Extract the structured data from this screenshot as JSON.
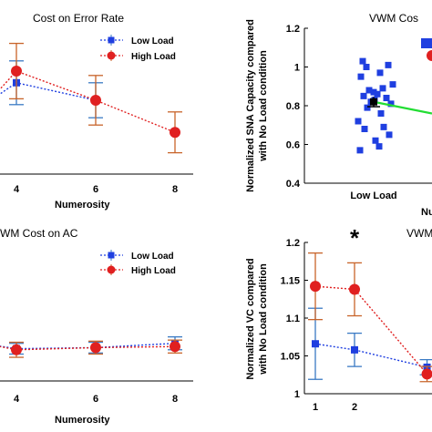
{
  "colors": {
    "low": "#1f3fe0",
    "high": "#e02020",
    "err_low": "#3a7ac4",
    "err_high": "#c8642a",
    "line": "#22dd33"
  },
  "chart_data": [
    {
      "id": "p1",
      "type": "line",
      "title": "Cost on Error Rate",
      "xlabel": "Numerosity",
      "ylabel": "",
      "xlim": [
        3.3,
        8.9
      ],
      "ylim": [
        0,
        1
      ],
      "x_ticks": [
        "4",
        "6",
        "8"
      ],
      "legend": {
        "position": "top-right",
        "entries": [
          "Low Load",
          "High Load"
        ]
      },
      "series": [
        {
          "name": "Low Load",
          "x": [
            3.3,
            4,
            6
          ],
          "y": [
            0.49,
            0.62,
            0.5
          ],
          "err": [
            0,
            0.15,
            0.12
          ]
        },
        {
          "name": "High Load",
          "x": [
            3.3,
            4,
            6,
            8
          ],
          "y": [
            0.49,
            0.7,
            0.5,
            0.28
          ],
          "err": [
            0,
            0.19,
            0.17,
            0.14
          ]
        }
      ]
    },
    {
      "id": "p2",
      "type": "scatter",
      "title": "VWM Cos",
      "xlabel": "Low Load",
      "xlabel2": "Nu",
      "ylabel": "Normalized SNA Capacity compared with No Load condition",
      "ylim": [
        0.4,
        1.2
      ],
      "y_ticks": [
        "0.4",
        "0.6",
        "0.8",
        "1",
        "1.2"
      ],
      "points": [
        1.03,
        1.01,
        1.0,
        0.97,
        0.95,
        0.91,
        0.89,
        0.88,
        0.87,
        0.86,
        0.85,
        0.84,
        0.83,
        0.82,
        0.81,
        0.79,
        0.76,
        0.72,
        0.69,
        0.68,
        0.65,
        0.62,
        0.59,
        0.57
      ],
      "mean": 0.82,
      "err": 0.025,
      "trend": [
        0.85,
        0.76
      ]
    },
    {
      "id": "p3",
      "type": "line",
      "title": "WM Cost on AC",
      "xlabel": "Numerosity",
      "ylabel": "",
      "xlim": [
        3.3,
        8.9
      ],
      "ylim": [
        0,
        1
      ],
      "x_ticks": [
        "4",
        "6",
        "8"
      ],
      "legend": {
        "position": "top-right",
        "entries": [
          "Low Load",
          "High Load"
        ]
      },
      "series": [
        {
          "name": "Low Load",
          "x": [
            3.3,
            4,
            6,
            8
          ],
          "y": [
            0.34,
            0.3,
            0.31,
            0.35
          ],
          "err": [
            0,
            0.05,
            0.05,
            0.06
          ]
        },
        {
          "name": "High Load",
          "x": [
            3.3,
            4,
            6,
            8
          ],
          "y": [
            0.34,
            0.29,
            0.31,
            0.32
          ],
          "err": [
            0,
            0.07,
            0.06,
            0.06
          ]
        }
      ]
    },
    {
      "id": "p4",
      "type": "line",
      "title": "VWM",
      "xlabel": "",
      "ylabel": "Normalized VC compared with No Load condition",
      "xlim": [
        0.7,
        4.2
      ],
      "ylim": [
        1.0,
        1.2
      ],
      "x_ticks": [
        "1",
        "2"
      ],
      "y_ticks": [
        "1",
        "1.05",
        "1.1",
        "1.15",
        "1.2"
      ],
      "annotation": "*",
      "series": [
        {
          "name": "Low Load",
          "x": [
            1,
            2,
            3.85
          ],
          "y": [
            1.066,
            1.058,
            1.035
          ],
          "err": [
            0.047,
            0.022,
            0.01
          ]
        },
        {
          "name": "High Load",
          "x": [
            1,
            2,
            3.85
          ],
          "y": [
            1.142,
            1.138,
            1.026
          ],
          "err": [
            0.044,
            0.035,
            0.01
          ]
        }
      ]
    }
  ]
}
